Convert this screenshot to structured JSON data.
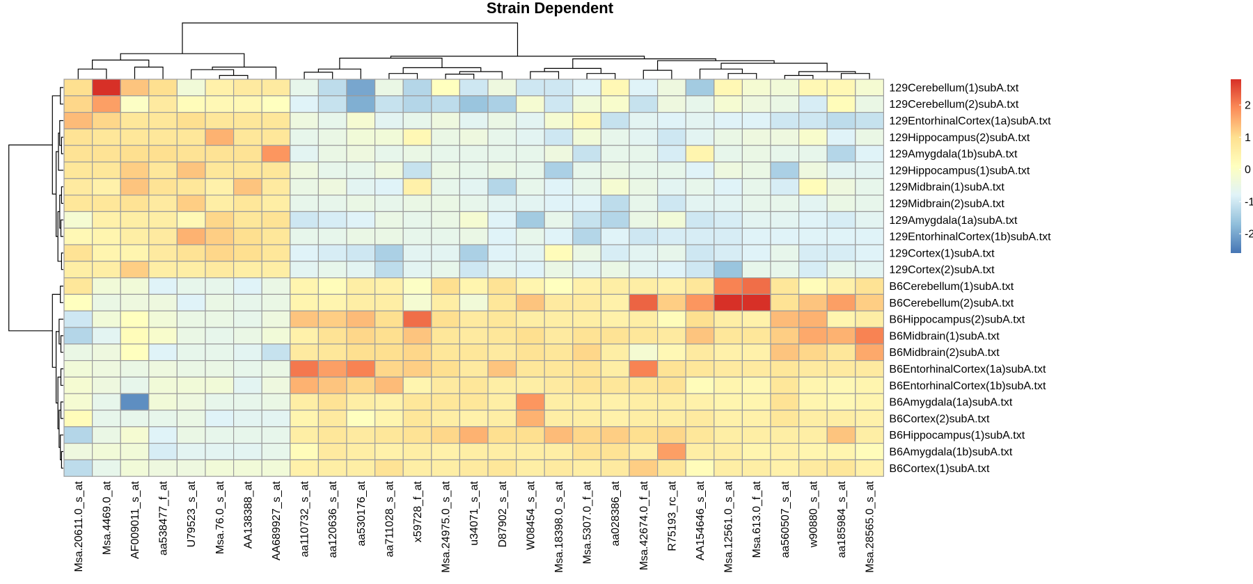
{
  "chart_data": {
    "type": "heatmap",
    "title": "Strain Dependent",
    "columns": [
      "Msa.20611.0_s_at",
      "Msa.4469.0_at",
      "AF009011_s_at",
      "aa538477_f_at",
      "U79523_s_at",
      "Msa.76.0_s_at",
      "AA138388_at",
      "AA689927_s_at",
      "aa110732_s_at",
      "aa120636_s_at",
      "aa530176_at",
      "aa711028_s_at",
      "x59728_f_at",
      "Msa.24975.0_s_at",
      "u34071_s_at",
      "D87902_s_at",
      "W08454_s_at",
      "Msa.18398.0_s_at",
      "Msa.5307.0_f_at",
      "aa028386_at",
      "Msa.42674.0_f_at",
      "R75193_rc_at",
      "AA154646_s_at",
      "Msa.12561.0_s_at",
      "Msa.613.0_f_at",
      "aa560507_s_at",
      "w90880_s_at",
      "aa185984_s_at",
      "Msa.28565.0_s_at"
    ],
    "rows": [
      "129Cerebellum(1)subA.txt",
      "129Cerebellum(2)subA.txt",
      "129EntorhinalCortex(1a)subA.txt",
      "129Hippocampus(2)subA.txt",
      "129Amygdala(1b)subA.txt",
      "129Hippocampus(1)subA.txt",
      "129Midbrain(1)subA.txt",
      "129Midbrain(2)subA.txt",
      "129Amygdala(1a)subA.txt",
      "129EntorhinalCortex(1b)subA.txt",
      "129Cortex(1)subA.txt",
      "129Cortex(2)subA.txt",
      "B6Cerebellum(1)subA.txt",
      "B6Cerebellum(2)subA.txt",
      "B6Hippocampus(2)subA.txt",
      "B6Midbrain(1)subA.txt",
      "B6Midbrain(2)subA.txt",
      "B6EntorhinalCortex(1a)subA.txt",
      "B6EntorhinalCortex(1b)subA.txt",
      "B6Amygdala(1a)subA.txt",
      "B6Cortex(2)subA.txt",
      "B6Hippocampus(1)subA.txt",
      "B6Amygdala(1b)subA.txt",
      "B6Cortex(1)subA.txt"
    ],
    "values": [
      [
        1.0,
        2.8,
        1.3,
        1.0,
        -0.3,
        0.5,
        0.7,
        0.7,
        -0.6,
        -1.2,
        -2.0,
        -0.5,
        -1.3,
        0.1,
        -1.0,
        -0.4,
        -1.0,
        -1.0,
        -0.8,
        0.3,
        -0.8,
        -0.4,
        -1.5,
        0.3,
        -0.2,
        -0.3,
        0.3,
        0.3,
        -0.2
      ],
      [
        1.1,
        1.7,
        0.0,
        0.7,
        0.2,
        0.3,
        0.3,
        0.1,
        -0.8,
        -1.1,
        -1.9,
        -1.1,
        -1.3,
        -1.2,
        -1.6,
        -1.4,
        -0.2,
        -1.0,
        -0.3,
        -0.1,
        -1.1,
        -0.4,
        -0.6,
        -0.2,
        -0.4,
        -0.5,
        -0.9,
        0.2,
        -0.5
      ],
      [
        1.4,
        1.1,
        0.8,
        0.8,
        1.0,
        0.8,
        0.8,
        0.8,
        -0.4,
        -0.6,
        -0.2,
        -0.7,
        -0.6,
        -0.4,
        -0.7,
        -0.5,
        -0.7,
        -0.2,
        0.3,
        -1.1,
        -0.7,
        -0.8,
        -0.7,
        -0.8,
        -0.8,
        -1.0,
        -1.0,
        -1.2,
        -1.1
      ],
      [
        0.9,
        0.8,
        0.8,
        0.8,
        0.8,
        1.5,
        0.8,
        0.8,
        -0.6,
        -0.5,
        -0.3,
        -0.3,
        0.3,
        -0.5,
        -0.4,
        -0.6,
        -0.7,
        -1.0,
        -0.3,
        -0.6,
        -0.7,
        -1.0,
        -0.7,
        -0.5,
        -0.4,
        -0.4,
        -0.1,
        -0.8,
        -0.5
      ],
      [
        0.9,
        0.9,
        1.0,
        1.0,
        0.9,
        0.9,
        0.9,
        1.8,
        -0.7,
        -0.5,
        -0.4,
        -0.6,
        -0.5,
        -0.6,
        -0.6,
        -0.6,
        -0.6,
        -0.4,
        -1.1,
        -0.6,
        -0.6,
        -0.9,
        0.4,
        -0.6,
        -0.5,
        -0.6,
        -0.6,
        -1.3,
        -0.8
      ],
      [
        0.8,
        0.8,
        1.2,
        0.8,
        1.3,
        0.8,
        0.8,
        0.8,
        -0.4,
        -0.6,
        -0.6,
        -0.4,
        -1.1,
        -0.5,
        -0.6,
        -0.5,
        -0.6,
        -1.4,
        -0.6,
        -0.5,
        -0.6,
        -0.6,
        -0.8,
        -0.4,
        -0.5,
        -1.4,
        -0.4,
        -0.7,
        -0.7
      ],
      [
        0.7,
        0.5,
        1.3,
        0.9,
        0.8,
        0.5,
        1.3,
        0.7,
        -0.5,
        -0.4,
        -0.7,
        -0.8,
        0.5,
        -0.6,
        -0.7,
        -1.3,
        -0.6,
        -0.8,
        -0.6,
        -0.2,
        -0.5,
        -0.7,
        -0.6,
        -0.8,
        -0.6,
        -0.9,
        0.2,
        -0.4,
        -0.6
      ],
      [
        0.8,
        0.8,
        0.9,
        0.7,
        1.2,
        0.6,
        0.8,
        0.6,
        -0.6,
        -0.6,
        -0.5,
        -0.6,
        -0.5,
        -0.5,
        -0.6,
        -0.7,
        -0.7,
        -0.8,
        -0.8,
        -1.2,
        -0.6,
        -1.0,
        -0.7,
        -0.7,
        -0.6,
        -0.6,
        -0.7,
        -0.5,
        -0.6
      ],
      [
        -0.2,
        0.5,
        0.6,
        0.6,
        0.3,
        1.1,
        0.8,
        0.9,
        -1.0,
        -0.9,
        -0.8,
        -0.5,
        -0.6,
        -0.5,
        -0.2,
        -0.8,
        -1.5,
        -0.6,
        -1.1,
        -1.3,
        -0.5,
        -0.3,
        -1.0,
        -0.9,
        -0.7,
        -0.7,
        -0.8,
        -0.9,
        -0.7
      ],
      [
        0.3,
        0.4,
        0.6,
        0.7,
        1.5,
        1.2,
        1.0,
        0.8,
        -0.6,
        -0.6,
        -0.5,
        -0.5,
        -0.6,
        -0.6,
        -0.5,
        -0.8,
        -0.6,
        -0.8,
        -1.3,
        -0.8,
        -1.0,
        -0.9,
        -0.9,
        -0.9,
        -0.8,
        -0.8,
        -0.8,
        -0.8,
        -0.8
      ],
      [
        0.9,
        0.4,
        0.4,
        0.7,
        0.9,
        1.1,
        1.0,
        0.8,
        -0.8,
        -0.9,
        -1.0,
        -1.4,
        -0.7,
        -0.7,
        -1.4,
        -0.8,
        -0.7,
        0.2,
        -0.5,
        -0.9,
        -0.7,
        -0.6,
        -1.0,
        -0.9,
        -0.8,
        -0.6,
        -0.9,
        -0.9,
        -0.8
      ],
      [
        0.6,
        0.6,
        1.2,
        0.6,
        0.6,
        0.7,
        0.6,
        0.6,
        -0.7,
        -0.6,
        -0.7,
        -1.2,
        -0.7,
        -0.6,
        -1.0,
        -0.7,
        -0.8,
        -0.5,
        -0.7,
        -0.5,
        -0.7,
        -0.8,
        -1.0,
        -1.6,
        -0.6,
        -0.6,
        -0.9,
        -0.6,
        -0.7
      ],
      [
        0.8,
        -0.3,
        -0.3,
        -0.8,
        -0.6,
        -0.6,
        -0.8,
        -0.5,
        0.4,
        0.2,
        0.6,
        0.5,
        0.0,
        1.0,
        0.4,
        0.9,
        0.4,
        0.1,
        0.5,
        0.6,
        0.6,
        0.5,
        0.8,
        2.0,
        2.2,
        0.8,
        0.2,
        0.5,
        0.9
      ],
      [
        0.1,
        -0.5,
        -0.4,
        -0.4,
        -0.8,
        -0.5,
        -0.6,
        -0.5,
        0.4,
        0.4,
        0.6,
        0.6,
        -0.2,
        0.6,
        -0.3,
        0.8,
        1.3,
        0.7,
        0.7,
        0.5,
        2.3,
        1.2,
        1.8,
        2.8,
        2.8,
        0.9,
        1.3,
        1.7,
        1.2
      ],
      [
        -1.0,
        -0.3,
        0.1,
        -0.3,
        -0.5,
        -0.5,
        -0.6,
        -0.4,
        1.3,
        1.2,
        1.4,
        1.0,
        2.2,
        1.0,
        0.7,
        0.8,
        0.6,
        0.6,
        0.6,
        0.5,
        0.6,
        0.2,
        1.0,
        0.6,
        0.5,
        1.4,
        1.5,
        0.4,
        0.6
      ],
      [
        -1.3,
        -0.7,
        0.2,
        -0.1,
        -0.5,
        -0.6,
        -0.5,
        -0.3,
        0.5,
        0.9,
        1.1,
        1.0,
        1.3,
        0.8,
        0.7,
        0.8,
        1.0,
        0.7,
        0.9,
        0.9,
        0.8,
        0.7,
        1.3,
        0.8,
        0.8,
        1.2,
        1.6,
        1.5,
        2.0
      ],
      [
        -0.5,
        -0.4,
        0.1,
        -0.8,
        -0.6,
        -0.6,
        -0.7,
        -1.1,
        0.7,
        0.8,
        1.0,
        1.0,
        1.1,
        0.8,
        0.8,
        0.7,
        0.9,
        0.8,
        1.1,
        0.6,
        -0.2,
        0.3,
        0.7,
        0.5,
        0.5,
        1.3,
        1.1,
        0.8,
        1.6
      ],
      [
        -0.3,
        -0.4,
        -0.5,
        -0.4,
        -0.5,
        -0.5,
        -0.6,
        -0.5,
        2.1,
        1.7,
        2.0,
        1.1,
        1.2,
        1.0,
        0.7,
        1.3,
        0.8,
        0.8,
        0.9,
        0.6,
        2.0,
        0.9,
        0.8,
        0.7,
        0.7,
        0.8,
        0.7,
        0.7,
        0.7
      ],
      [
        -0.2,
        -0.4,
        -0.6,
        -0.3,
        -0.3,
        -0.3,
        -0.7,
        -0.4,
        1.5,
        1.3,
        1.1,
        1.4,
        0.4,
        0.7,
        0.8,
        0.6,
        0.6,
        0.7,
        0.9,
        0.8,
        0.8,
        0.9,
        0.2,
        0.4,
        0.3,
        0.8,
        0.4,
        0.3,
        0.4
      ],
      [
        -0.2,
        -0.6,
        -2.3,
        -0.3,
        -0.4,
        -0.6,
        -0.6,
        -0.5,
        0.6,
        0.9,
        0.6,
        0.5,
        0.8,
        0.8,
        0.8,
        0.6,
        1.8,
        0.6,
        0.6,
        0.5,
        0.6,
        0.6,
        0.5,
        0.4,
        0.4,
        0.9,
        0.4,
        0.3,
        0.4
      ],
      [
        0.2,
        -0.6,
        -0.6,
        -0.6,
        -0.5,
        -0.8,
        -0.7,
        -0.7,
        0.4,
        0.7,
        0.1,
        0.4,
        0.8,
        0.6,
        0.5,
        0.6,
        1.5,
        0.6,
        0.6,
        0.5,
        0.6,
        0.6,
        0.7,
        0.5,
        0.5,
        0.8,
        0.6,
        0.6,
        0.5
      ],
      [
        -1.3,
        -0.5,
        -0.2,
        -0.8,
        -0.5,
        -0.6,
        -0.6,
        -0.6,
        0.6,
        0.8,
        0.7,
        0.8,
        0.9,
        1.1,
        1.5,
        1.0,
        1.0,
        1.4,
        1.1,
        1.2,
        1.0,
        1.1,
        0.8,
        0.6,
        0.6,
        0.6,
        0.6,
        1.3,
        0.6
      ],
      [
        -0.4,
        -0.3,
        -0.3,
        -0.9,
        -0.7,
        -0.7,
        -0.7,
        -0.6,
        0.2,
        0.7,
        0.6,
        0.5,
        0.6,
        0.5,
        0.6,
        0.6,
        0.6,
        0.6,
        0.9,
        0.9,
        0.6,
        1.7,
        0.6,
        0.6,
        0.4,
        0.5,
        0.4,
        0.4,
        0.2
      ],
      [
        -1.2,
        -0.6,
        -0.3,
        -0.4,
        -0.4,
        -0.3,
        -0.3,
        -0.3,
        0.5,
        0.6,
        0.6,
        0.9,
        0.6,
        0.6,
        0.7,
        0.8,
        0.6,
        0.7,
        0.6,
        0.7,
        1.2,
        0.8,
        0.2,
        0.6,
        0.6,
        0.5,
        0.7,
        0.8,
        0.5
      ]
    ],
    "color_scale": {
      "low": "#4575B4",
      "mid": "#FFFFBF",
      "high": "#D73027",
      "stops": [
        "#4575B4",
        "#91BFDB",
        "#E0F3F8",
        "#FFFFBF",
        "#FEE090",
        "#FC8D59",
        "#D73027"
      ],
      "range": [
        -2.6,
        2.8
      ]
    },
    "legend": {
      "placement": "right",
      "ticks": [
        2,
        1,
        0,
        -1,
        -2
      ]
    },
    "grid": true,
    "border_color": "#9C9C9C"
  }
}
